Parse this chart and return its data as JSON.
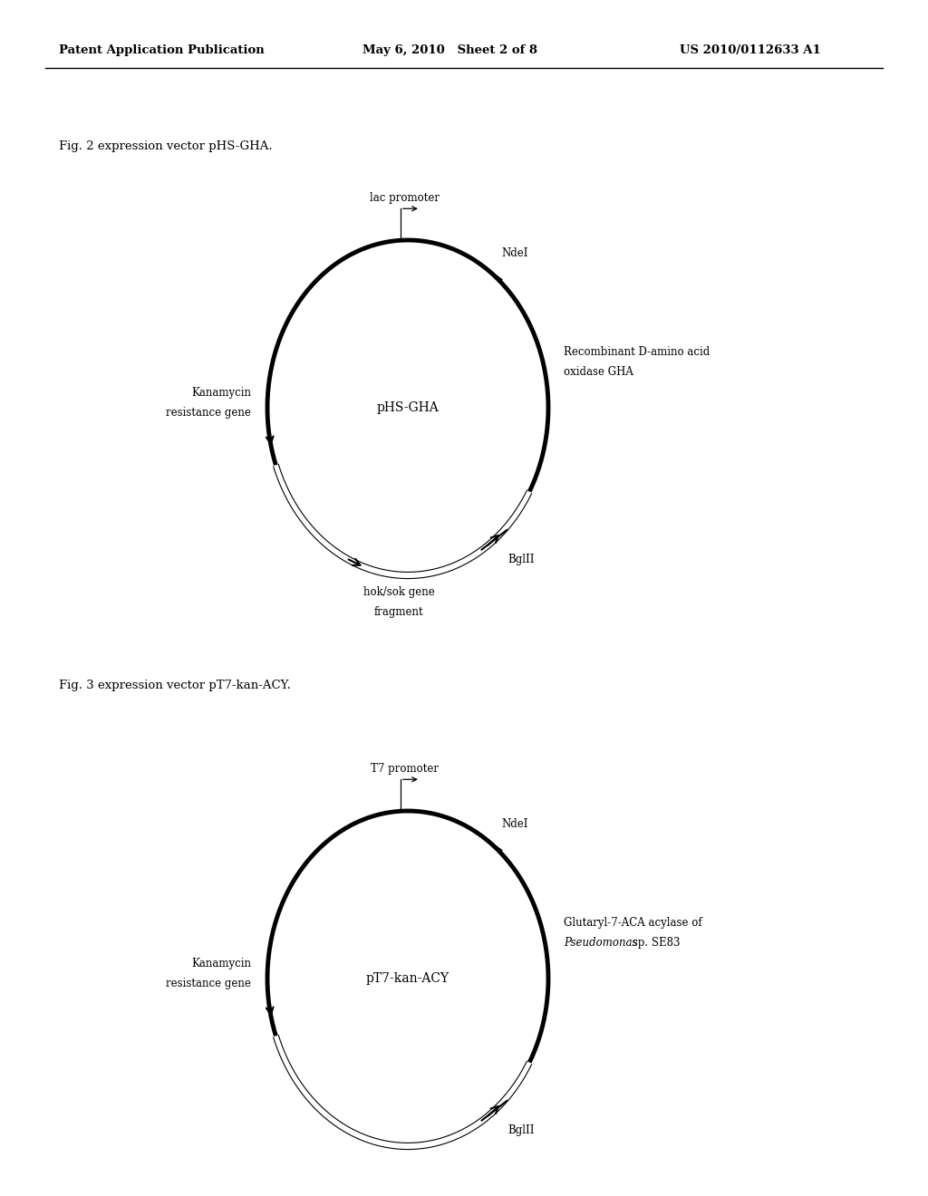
{
  "background_color": "#ffffff",
  "header_left": "Patent Application Publication",
  "header_mid": "May 6, 2010   Sheet 2 of 8",
  "header_right": "US 2010/0112633 A1",
  "fig1_caption": "Fig. 2 expression vector pHS-GHA.",
  "fig2_caption": "Fig. 3 expression vector pT7-kan-ACY.",
  "fig1": {
    "label": "pHS-GHA",
    "promoter_label": "lac promoter",
    "ndei_label": "NdeI",
    "bglii_label": "BglII",
    "right_label_line1": "Recombinant D-amino acid",
    "right_label_line2": "oxidase GHA",
    "left_label_line1": "Kanamycin",
    "left_label_line2": "resistance gene",
    "bottom_label_line1": "hok/sok gene",
    "bottom_label_line2": "fragment",
    "has_bottom_label": true
  },
  "fig2": {
    "label": "pT7-kan-ACY",
    "promoter_label": "T7 promoter",
    "ndei_label": "NdeI",
    "bglii_label": "BglII",
    "right_label_line1": "Glutaryl-7-ACA acylase of",
    "right_label_line2_italic": "Pseudomonas",
    "right_label_line2_normal": " sp. SE83",
    "left_label_line1": "Kanamycin",
    "left_label_line2": "resistance gene",
    "has_bottom_label": false
  }
}
